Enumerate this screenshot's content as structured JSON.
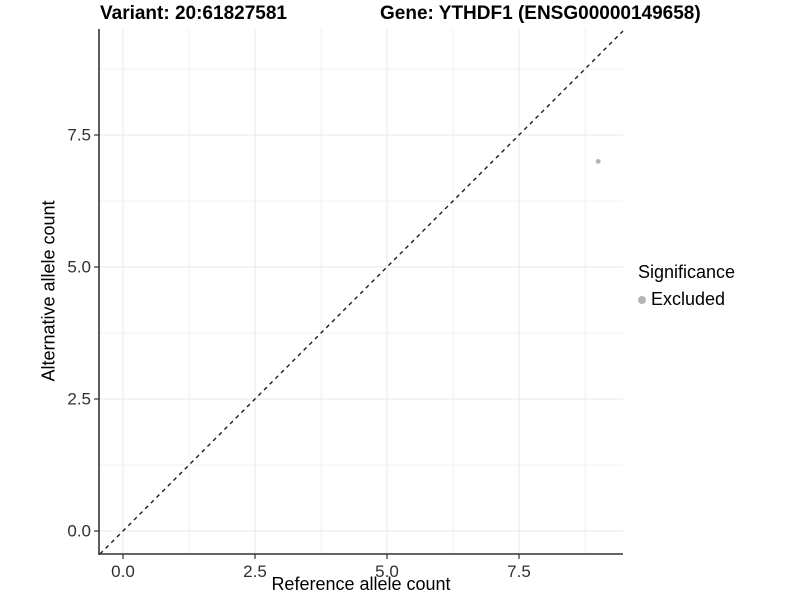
{
  "header": {
    "title_left": "Variant: 20:61827581",
    "title_right": "Gene: YTHDF1 (ENSG00000149658)"
  },
  "chart_data": {
    "type": "scatter",
    "title": "Variant: 20:61827581 — Gene: YTHDF1 (ENSG00000149658)",
    "xlabel": "Reference allele count",
    "ylabel": "Alternative allele count",
    "xlim": [
      -0.4545,
      9.4697
    ],
    "ylim": [
      -0.4356,
      9.5076
    ],
    "x_major_ticks": [
      0.0,
      2.5,
      5.0,
      7.5
    ],
    "x_tick_labels": [
      "0.0",
      "2.5",
      "5.0",
      "7.5"
    ],
    "y_major_ticks": [
      0.0,
      2.5,
      5.0,
      7.5
    ],
    "y_tick_labels": [
      "0.0",
      "2.5",
      "5.0",
      "7.5"
    ],
    "x_minor_ticks": [
      1.25,
      3.75,
      6.25,
      8.75
    ],
    "y_minor_ticks": [
      1.25,
      3.75,
      6.25,
      8.75
    ],
    "grid": true,
    "series": [
      {
        "name": "Excluded",
        "color": "#b5b5b5",
        "marker": "circle",
        "points": [
          {
            "x": 9,
            "y": 7
          }
        ]
      }
    ],
    "reference_line": {
      "kind": "identity",
      "equation": "y = x",
      "style": "dashed",
      "color": "#1a1a1a"
    },
    "legend": {
      "title": "Significance",
      "position": "right",
      "items": [
        {
          "label": "Excluded",
          "color": "#b5b5b5",
          "marker": "circle"
        }
      ]
    },
    "colors": {
      "background": "#ffffff",
      "grid_major": "#e8e8e8",
      "grid_minor": "#f2f2f2",
      "axis_line": "#333333",
      "tick_mark": "#333333",
      "tick_text": "#303030"
    }
  }
}
